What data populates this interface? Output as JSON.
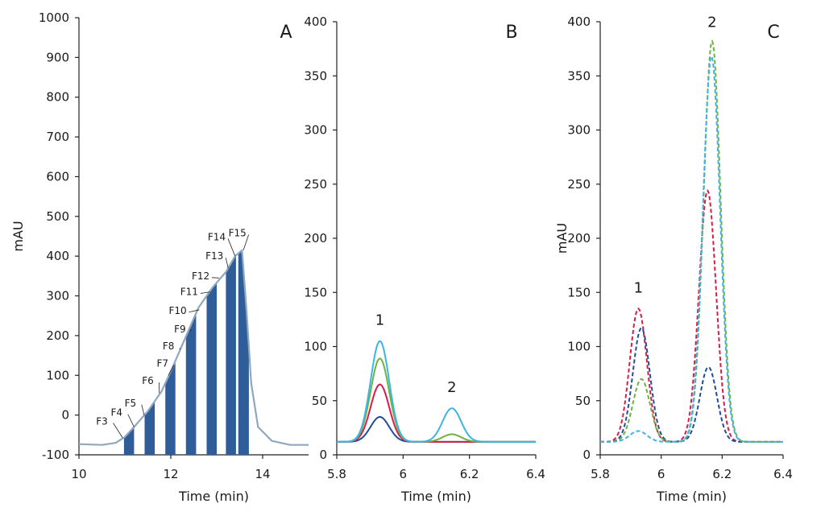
{
  "chart_data": [
    {
      "type": "line",
      "panel": "A",
      "xlabel": "Time (min)",
      "ylabel": "mAU",
      "xlim": [
        10,
        15
      ],
      "ylim": [
        -100,
        1000
      ],
      "xticks": [
        10,
        12,
        14
      ],
      "xtick_labels": [
        "10",
        "12",
        "14"
      ],
      "yticks": [
        -100,
        0,
        100,
        200,
        300,
        400,
        500,
        600,
        700,
        800,
        900,
        1000
      ],
      "ytick_labels": [
        "-100",
        "0",
        "100",
        "200",
        "300",
        "400",
        "500",
        "600",
        "700",
        "800",
        "900",
        "1000"
      ],
      "grid": false,
      "series": [
        {
          "color": "#8fa8bf",
          "x": [
            10.0,
            10.5,
            10.8,
            11.0,
            11.2,
            11.5,
            11.8,
            12.0,
            12.3,
            12.6,
            12.9,
            13.2,
            13.4,
            13.55,
            13.65,
            13.75,
            13.9,
            14.2,
            14.6,
            15.0
          ],
          "y": [
            -73,
            -75,
            -70,
            -55,
            -30,
            10,
            60,
            110,
            190,
            270,
            320,
            360,
            400,
            415,
            260,
            80,
            -30,
            -65,
            -75,
            -75
          ]
        }
      ],
      "fractions": {
        "color": "#2e5d99",
        "bars": [
          [
            10.98,
            11.2
          ],
          [
            11.43,
            11.65
          ],
          [
            11.88,
            12.1
          ],
          [
            12.33,
            12.55
          ],
          [
            12.78,
            13.0
          ],
          [
            13.2,
            13.42
          ],
          [
            13.47,
            13.7
          ]
        ],
        "labels": [
          {
            "text": "F3",
            "x": 10.95,
            "y": -57,
            "lx": 10.5,
            "ly": -24
          },
          {
            "text": "F4",
            "x": 11.2,
            "y": -30,
            "lx": 10.82,
            "ly": -2
          },
          {
            "text": "F5",
            "x": 11.42,
            "y": 0,
            "lx": 11.12,
            "ly": 22
          },
          {
            "text": "F6",
            "x": 11.75,
            "y": 55,
            "lx": 11.5,
            "ly": 78
          },
          {
            "text": "F7",
            "x": 11.95,
            "y": 100,
            "lx": 11.82,
            "ly": 122
          },
          {
            "text": "F8",
            "x": 12.2,
            "y": 165,
            "lx": 11.95,
            "ly": 165
          },
          {
            "text": "F9",
            "x": 12.42,
            "y": 215,
            "lx": 12.2,
            "ly": 208
          },
          {
            "text": "F10",
            "x": 12.62,
            "y": 265,
            "lx": 12.15,
            "ly": 255
          },
          {
            "text": "F11",
            "x": 12.85,
            "y": 310,
            "lx": 12.4,
            "ly": 302
          },
          {
            "text": "F12",
            "x": 13.05,
            "y": 345,
            "lx": 12.65,
            "ly": 342
          },
          {
            "text": "F13",
            "x": 13.25,
            "y": 370,
            "lx": 12.95,
            "ly": 392
          },
          {
            "text": "F14",
            "x": 13.4,
            "y": 400,
            "lx": 13.0,
            "ly": 440
          },
          {
            "text": "F15",
            "x": 13.58,
            "y": 415,
            "lx": 13.45,
            "ly": 450
          }
        ]
      }
    },
    {
      "type": "line",
      "panel": "B",
      "xlabel": "Time (min)",
      "ylabel": "",
      "xlim": [
        5.8,
        6.4
      ],
      "ylim": [
        0,
        400
      ],
      "xticks": [
        5.8,
        6.0,
        6.2,
        6.4
      ],
      "xtick_labels": [
        "5.8",
        "6",
        "6.2",
        "6.4"
      ],
      "yticks": [
        0,
        50,
        100,
        150,
        200,
        250,
        300,
        350,
        400
      ],
      "ytick_labels": [
        "0",
        "50",
        "100",
        "150",
        "200",
        "250",
        "300",
        "350",
        "400"
      ],
      "grid": false,
      "baseline": 12,
      "peaks_centers": [
        5.93,
        6.147
      ],
      "peak_width": 0.028,
      "series": [
        {
          "color": "#1f4e96",
          "style": "solid",
          "heights": [
            35,
            12
          ]
        },
        {
          "color": "#d81b4a",
          "style": "solid",
          "heights": [
            65,
            12
          ]
        },
        {
          "color": "#6db33f",
          "style": "solid",
          "heights": [
            89,
            19
          ]
        },
        {
          "color": "#3db4e6",
          "style": "solid",
          "heights": [
            105,
            43
          ]
        }
      ],
      "annotations": [
        {
          "text": "1",
          "x": 5.93,
          "y": 120
        },
        {
          "text": "2",
          "x": 6.147,
          "y": 58
        }
      ]
    },
    {
      "type": "line",
      "panel": "C",
      "xlabel": "Time (min)",
      "ylabel": "mAU",
      "xlim": [
        5.8,
        6.4
      ],
      "ylim": [
        0,
        400
      ],
      "xticks": [
        5.8,
        6.0,
        6.2,
        6.4
      ],
      "xtick_labels": [
        "5.8",
        "6",
        "6.2",
        "6.4"
      ],
      "yticks": [
        0,
        50,
        100,
        150,
        200,
        250,
        300,
        350,
        400
      ],
      "ytick_labels": [
        "0",
        "50",
        "100",
        "150",
        "200",
        "250",
        "300",
        "350",
        "400"
      ],
      "grid": false,
      "baseline": 12,
      "peak_width": 0.028,
      "series": [
        {
          "color": "#d81b4a",
          "style": "dashed",
          "centers": [
            5.925,
            6.152
          ],
          "heights": [
            135,
            244
          ]
        },
        {
          "color": "#1f4e96",
          "style": "dashed",
          "centers": [
            5.935,
            6.155
          ],
          "heights": [
            117,
            81
          ]
        },
        {
          "color": "#6db33f",
          "style": "dashed",
          "centers": [
            5.935,
            6.167
          ],
          "heights": [
            70,
            382
          ]
        },
        {
          "color": "#3db4e6",
          "style": "dashed",
          "centers": [
            5.925,
            6.165
          ],
          "heights": [
            22,
            368
          ]
        }
      ],
      "annotations": [
        {
          "text": "1",
          "x": 5.925,
          "y": 150
        },
        {
          "text": "2",
          "x": 6.167,
          "y": 395
        }
      ]
    }
  ],
  "panels": {
    "A": {
      "letter": "A"
    },
    "B": {
      "letter": "B"
    },
    "C": {
      "letter": "C"
    }
  }
}
